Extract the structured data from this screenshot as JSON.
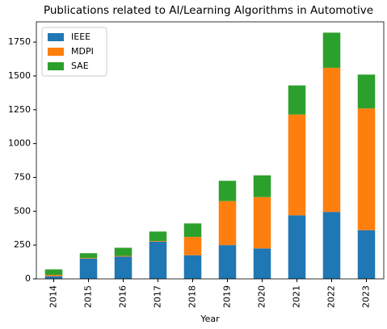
{
  "chart_data": {
    "type": "stacked_bar",
    "title": "Publications related to AI/Learning Algorithms in Automotive",
    "xlabel": "Year",
    "categories": [
      "2014",
      "2015",
      "2016",
      "2017",
      "2018",
      "2019",
      "2020",
      "2021",
      "2022",
      "2023"
    ],
    "series": [
      {
        "name": "IEEE",
        "color": "#1f77b4",
        "values": [
          20,
          150,
          165,
          275,
          175,
          250,
          225,
          470,
          495,
          360
        ]
      },
      {
        "name": "MDPI",
        "color": "#ff7f0e",
        "values": [
          10,
          5,
          5,
          5,
          135,
          325,
          380,
          745,
          1065,
          900
        ]
      },
      {
        "name": "SAE",
        "color": "#2ca02c",
        "values": [
          40,
          35,
          60,
          70,
          100,
          150,
          160,
          215,
          260,
          250
        ]
      }
    ],
    "ylim": [
      0,
      1900
    ],
    "yticks": [
      0,
      250,
      500,
      750,
      1000,
      1250,
      1500,
      1750
    ],
    "legend": "upper left"
  }
}
